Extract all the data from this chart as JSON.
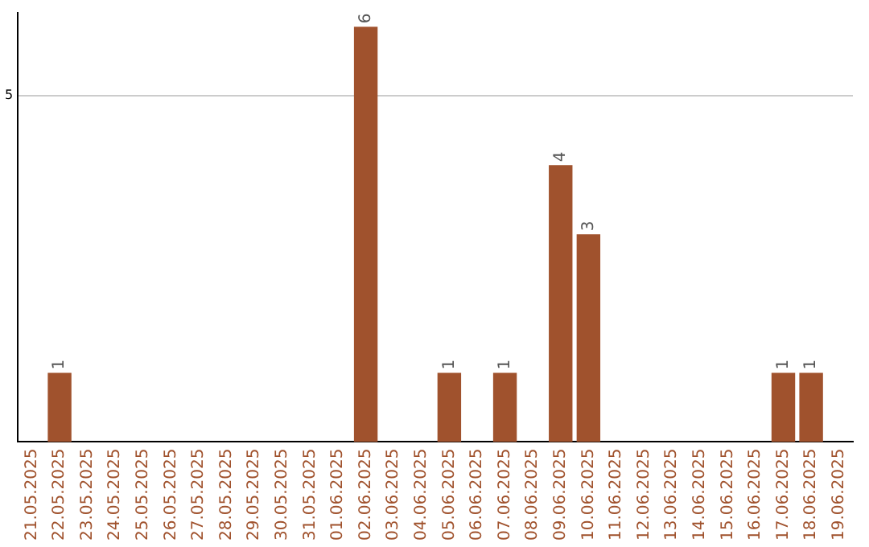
{
  "chart_data": {
    "type": "bar",
    "categories": [
      "21.05.2025",
      "22.05.2025",
      "23.05.2025",
      "24.05.2025",
      "25.05.2025",
      "26.05.2025",
      "27.05.2025",
      "28.05.2025",
      "29.05.2025",
      "30.05.2025",
      "31.05.2025",
      "01.06.2025",
      "02.06.2025",
      "03.06.2025",
      "04.06.2025",
      "05.06.2025",
      "06.06.2025",
      "07.06.2025",
      "08.06.2025",
      "09.06.2025",
      "10.06.2025",
      "11.06.2025",
      "12.06.2025",
      "13.06.2025",
      "14.06.2025",
      "15.06.2025",
      "16.06.2025",
      "17.06.2025",
      "18.06.2025",
      "19.06.2025"
    ],
    "values": [
      0,
      1,
      0,
      0,
      0,
      0,
      0,
      0,
      0,
      0,
      0,
      0,
      6,
      0,
      0,
      1,
      0,
      1,
      0,
      4,
      3,
      0,
      0,
      0,
      0,
      0,
      0,
      1,
      1,
      0
    ],
    "value_labels": [
      null,
      "1",
      null,
      null,
      null,
      null,
      null,
      null,
      null,
      null,
      null,
      null,
      "6",
      null,
      null,
      "1",
      null,
      "1",
      null,
      "4",
      "3",
      null,
      null,
      null,
      null,
      null,
      null,
      "1",
      "1",
      null
    ],
    "color": "#a0522d",
    "ylim": [
      0,
      6.2
    ],
    "yticks": [
      5
    ],
    "grid": "y",
    "legend": false
  }
}
